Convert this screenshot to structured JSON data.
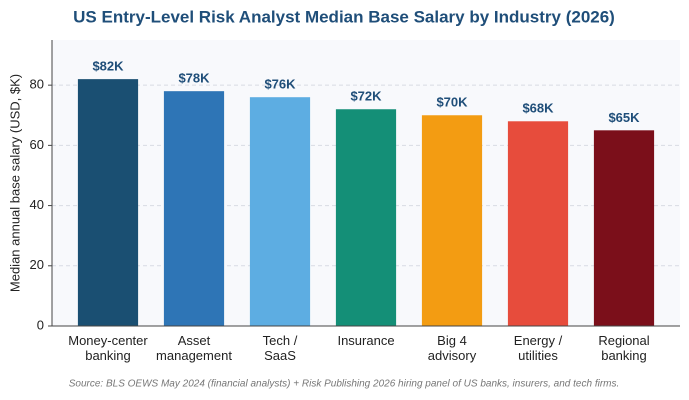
{
  "chart_data": {
    "type": "bar",
    "title": "US Entry-Level Risk Analyst Median Base Salary by Industry (2026)",
    "y_label": "Median annual base salary (USD, $K)",
    "source": "Source: BLS OEWS May 2024 (financial analysts) + Risk Publishing 2026 hiring panel of US banks, insurers, and tech firms.",
    "categories": [
      "Money-center\nbanking",
      "Asset\nmanagement",
      "Tech /\nSaaS",
      "Insurance",
      "Big 4\nadvisory",
      "Energy /\nutilities",
      "Regional\nbanking"
    ],
    "values": [
      82,
      78,
      76,
      72,
      70,
      68,
      65
    ],
    "value_labels": [
      "$82K",
      "$78K",
      "$76K",
      "$72K",
      "$70K",
      "$68K",
      "$65K"
    ],
    "colors": [
      "#1a4f72",
      "#2e75b6",
      "#5dade2",
      "#148f77",
      "#f39c12",
      "#e74c3c",
      "#7b0f1a"
    ],
    "ylim": [
      0,
      95
    ],
    "yticks": [
      0,
      20,
      40,
      60,
      80
    ],
    "grid": true
  }
}
